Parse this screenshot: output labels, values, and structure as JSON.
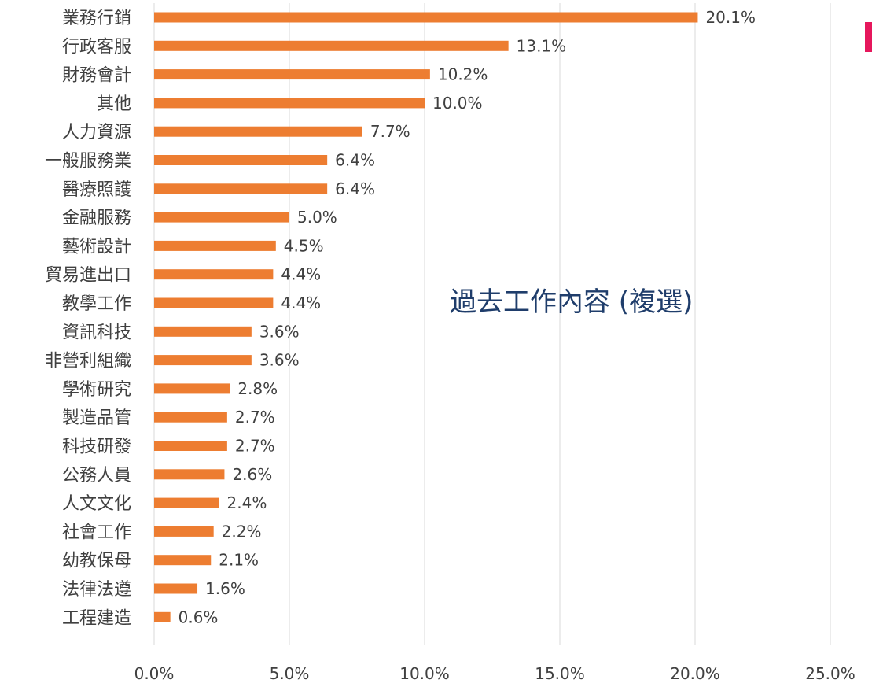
{
  "chart_data": {
    "type": "bar",
    "orientation": "horizontal",
    "title": "過去工作內容 (複選)",
    "categories": [
      "業務行銷",
      "行政客服",
      "財務會計",
      "其他",
      "人力資源",
      "一般服務業",
      "醫療照護",
      "金融服務",
      "藝術設計",
      "貿易進出口",
      "教學工作",
      "資訊科技",
      "非營利組織",
      "學術研究",
      "製造品管",
      "科技研發",
      "公務人員",
      "人文文化",
      "社會工作",
      "幼教保母",
      "法律法遵",
      "工程建造"
    ],
    "values": [
      20.1,
      13.1,
      10.2,
      10.0,
      7.7,
      6.4,
      6.4,
      5.0,
      4.5,
      4.4,
      4.4,
      3.6,
      3.6,
      2.8,
      2.7,
      2.7,
      2.6,
      2.4,
      2.2,
      2.1,
      1.6,
      0.6
    ],
    "value_labels": [
      "20.1%",
      "13.1%",
      "10.2%",
      "10.0%",
      "7.7%",
      "6.4%",
      "6.4%",
      "5.0%",
      "4.5%",
      "4.4%",
      "4.4%",
      "3.6%",
      "3.6%",
      "2.8%",
      "2.7%",
      "2.7%",
      "2.6%",
      "2.4%",
      "2.2%",
      "2.1%",
      "1.6%",
      "0.6%"
    ],
    "x_ticks": [
      0,
      5,
      10,
      15,
      20,
      25
    ],
    "x_tick_labels": [
      "0.0%",
      "5.0%",
      "10.0%",
      "15.0%",
      "20.0%",
      "25.0%"
    ],
    "xlim": [
      0,
      25
    ],
    "xlabel": "",
    "ylabel": "",
    "grid": "vertical",
    "legend": "none",
    "bar_color": "#ed7d31",
    "grid_color": "#d9d9d9",
    "title_color": "#1f3d6b",
    "accent_mark_color": "#e6175c"
  }
}
